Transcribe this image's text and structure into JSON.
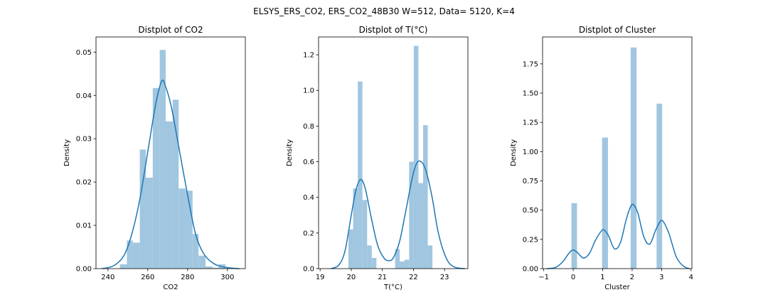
{
  "suptitle": "ELSYS_ERS_CO2, ERS_CO2_48B30 W=512, Data= 5120, K=4",
  "colors": {
    "hist": "#a1c6e0",
    "kde": "#1f77b4",
    "axis": "#000000"
  },
  "chart_data": [
    {
      "type": "bar",
      "title": "Distplot of CO2",
      "xlabel": "CO2",
      "ylabel": "Density",
      "xlim": [
        234,
        309
      ],
      "ylim": [
        0,
        0.0535
      ],
      "xticks": [
        240,
        260,
        280,
        300
      ],
      "yticks": [
        0.0,
        0.01,
        0.02,
        0.03,
        0.04,
        0.05
      ],
      "ytick_labels": [
        "0.00",
        "0.01",
        "0.02",
        "0.03",
        "0.04",
        "0.05"
      ],
      "bins": [
        {
          "x0": 246.0,
          "x1": 249.5,
          "value": 0.001
        },
        {
          "x0": 249.5,
          "x1": 252.5,
          "value": 0.0065
        },
        {
          "x0": 252.5,
          "x1": 256.0,
          "value": 0.006
        },
        {
          "x0": 256.0,
          "x1": 259.0,
          "value": 0.0275
        },
        {
          "x0": 259.0,
          "x1": 262.5,
          "value": 0.021
        },
        {
          "x0": 262.5,
          "x1": 266.0,
          "value": 0.0417
        },
        {
          "x0": 266.0,
          "x1": 269.0,
          "value": 0.0505
        },
        {
          "x0": 269.0,
          "x1": 272.5,
          "value": 0.034
        },
        {
          "x0": 272.5,
          "x1": 275.5,
          "value": 0.039
        },
        {
          "x0": 275.5,
          "x1": 279.0,
          "value": 0.0185
        },
        {
          "x0": 279.0,
          "x1": 282.5,
          "value": 0.018
        },
        {
          "x0": 282.5,
          "x1": 285.5,
          "value": 0.008
        },
        {
          "x0": 285.5,
          "x1": 289.0,
          "value": 0.003
        },
        {
          "x0": 289.0,
          "x1": 292.5,
          "value": 0.0005
        },
        {
          "x0": 292.5,
          "x1": 295.5,
          "value": 0.0002
        },
        {
          "x0": 295.5,
          "x1": 299.0,
          "value": 0.001
        }
      ],
      "kde": {
        "x": [
          237,
          243,
          248,
          252,
          256,
          260,
          264,
          267,
          269,
          272,
          276,
          280,
          284,
          288,
          293,
          299,
          306
        ],
        "y": [
          0.0,
          0.0007,
          0.003,
          0.008,
          0.016,
          0.027,
          0.038,
          0.0433,
          0.042,
          0.037,
          0.027,
          0.017,
          0.008,
          0.0035,
          0.0012,
          0.0003,
          0.0
        ]
      }
    },
    {
      "type": "bar",
      "title": "Distplot of T(°C)",
      "xlabel": "T(°C)",
      "ylabel": "Density",
      "xlim": [
        18.95,
        23.75
      ],
      "ylim": [
        0,
        1.3
      ],
      "xticks": [
        19,
        20,
        21,
        22,
        23
      ],
      "yticks": [
        0.0,
        0.2,
        0.4,
        0.6,
        0.8,
        1.0,
        1.2
      ],
      "ytick_labels": [
        "0.0",
        "0.2",
        "0.4",
        "0.6",
        "0.8",
        "1.0",
        "1.2"
      ],
      "bins": [
        {
          "x0": 19.91,
          "x1": 20.06,
          "value": 0.22
        },
        {
          "x0": 20.06,
          "x1": 20.21,
          "value": 0.45
        },
        {
          "x0": 20.21,
          "x1": 20.36,
          "value": 1.05
        },
        {
          "x0": 20.36,
          "x1": 20.51,
          "value": 0.385
        },
        {
          "x0": 20.51,
          "x1": 20.66,
          "value": 0.13
        },
        {
          "x0": 20.66,
          "x1": 20.81,
          "value": 0.06
        },
        {
          "x0": 21.41,
          "x1": 21.56,
          "value": 0.11
        },
        {
          "x0": 21.56,
          "x1": 21.71,
          "value": 0.04
        },
        {
          "x0": 21.71,
          "x1": 21.86,
          "value": 0.05
        },
        {
          "x0": 21.86,
          "x1": 22.01,
          "value": 0.6
        },
        {
          "x0": 22.01,
          "x1": 22.16,
          "value": 1.25
        },
        {
          "x0": 22.16,
          "x1": 22.31,
          "value": 0.48
        },
        {
          "x0": 22.31,
          "x1": 22.46,
          "value": 0.805
        },
        {
          "x0": 22.46,
          "x1": 22.61,
          "value": 0.13
        }
      ],
      "kde": {
        "x": [
          19.35,
          19.6,
          19.8,
          20.0,
          20.15,
          20.3,
          20.45,
          20.65,
          20.85,
          21.05,
          21.2,
          21.35,
          21.55,
          21.75,
          21.95,
          22.1,
          22.25,
          22.4,
          22.6,
          22.8,
          23.05,
          23.3,
          23.65
        ],
        "y": [
          0.0,
          0.02,
          0.1,
          0.3,
          0.44,
          0.5,
          0.45,
          0.28,
          0.13,
          0.06,
          0.045,
          0.06,
          0.15,
          0.32,
          0.5,
          0.59,
          0.6,
          0.55,
          0.4,
          0.2,
          0.06,
          0.01,
          0.0
        ]
      }
    },
    {
      "type": "bar",
      "title": "Distplot of Cluster",
      "xlabel": "Cluster",
      "ylabel": "Density",
      "xlim": [
        -1.04,
        4.03
      ],
      "ylim": [
        0,
        1.98
      ],
      "xticks": [
        -1,
        0,
        1,
        2,
        3,
        4
      ],
      "xtick_labels": [
        "−1",
        "0",
        "1",
        "2",
        "3",
        "4"
      ],
      "yticks": [
        0.0,
        0.25,
        0.5,
        0.75,
        1.0,
        1.25,
        1.5,
        1.75
      ],
      "ytick_labels": [
        "0.00",
        "0.25",
        "0.50",
        "0.75",
        "1.00",
        "1.25",
        "1.50",
        "1.75"
      ],
      "bins": [
        {
          "x0": -0.06,
          "x1": 0.13,
          "value": 0.56
        },
        {
          "x0": 0.98,
          "x1": 1.18,
          "value": 1.12
        },
        {
          "x0": 1.95,
          "x1": 2.15,
          "value": 1.89
        },
        {
          "x0": 2.83,
          "x1": 3.02,
          "value": 1.41
        }
      ],
      "kde": {
        "x": [
          -0.9,
          -0.6,
          -0.35,
          -0.15,
          0.0,
          0.15,
          0.35,
          0.55,
          0.75,
          0.95,
          1.05,
          1.2,
          1.4,
          1.6,
          1.8,
          1.95,
          2.05,
          2.2,
          2.4,
          2.6,
          2.8,
          2.95,
          3.05,
          3.25,
          3.5,
          3.75,
          3.95
        ],
        "y": [
          0.0,
          0.01,
          0.06,
          0.13,
          0.16,
          0.135,
          0.09,
          0.13,
          0.24,
          0.32,
          0.33,
          0.28,
          0.17,
          0.22,
          0.42,
          0.53,
          0.545,
          0.47,
          0.27,
          0.21,
          0.33,
          0.4,
          0.405,
          0.3,
          0.1,
          0.02,
          0.0
        ]
      }
    }
  ]
}
